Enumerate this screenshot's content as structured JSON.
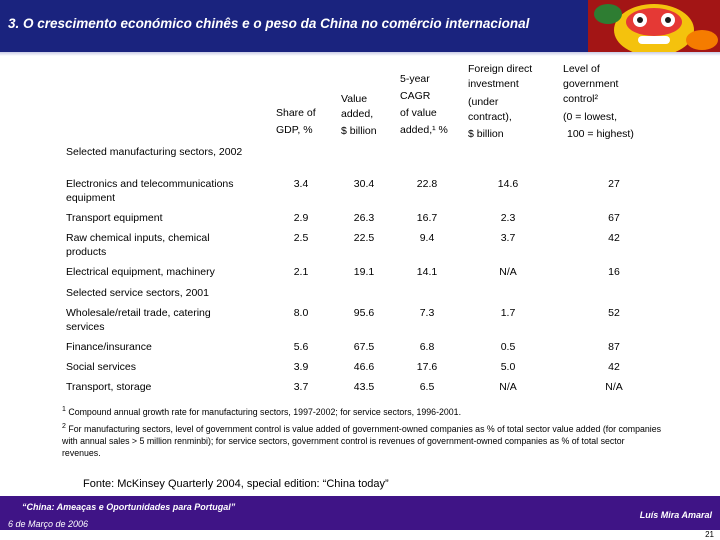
{
  "header": {
    "title": "3. O crescimento económico chinês e o peso da China no comércio internacional"
  },
  "columns": [
    {
      "lines": [
        "Share of",
        "GDP, %"
      ]
    },
    {
      "lines": [
        "Value",
        "added,",
        "$ billion"
      ]
    },
    {
      "lines": [
        "5-year",
        "CAGR",
        "of value",
        "added,¹ %"
      ]
    },
    {
      "lines": [
        "Foreign direct",
        "investment",
        "(under",
        "contract),",
        "$ billion"
      ]
    },
    {
      "lines": [
        "Level of",
        "government",
        "control²",
        "(0 = lowest,",
        "100 = highest)"
      ]
    }
  ],
  "sections": [
    {
      "label": "Selected manufacturing sectors, 2002",
      "rows": [
        {
          "label": "Electronics and telecommunications equipment",
          "values": [
            "3.4",
            "30.4",
            "22.8",
            "14.6",
            "27"
          ]
        },
        {
          "label": "Transport equipment",
          "values": [
            "2.9",
            "26.3",
            "16.7",
            "2.3",
            "67"
          ]
        },
        {
          "label": "Raw chemical inputs, chemical products",
          "values": [
            "2.5",
            "22.5",
            "9.4",
            "3.7",
            "42"
          ]
        },
        {
          "label": "Electrical equipment, machinery",
          "values": [
            "2.1",
            "19.1",
            "14.1",
            "N/A",
            "16"
          ]
        }
      ]
    },
    {
      "label": "Selected service sectors, 2001",
      "rows": [
        {
          "label": "Wholesale/retail trade, catering services",
          "values": [
            "8.0",
            "95.6",
            "7.3",
            "1.7",
            "52"
          ]
        },
        {
          "label": "Finance/insurance",
          "values": [
            "5.6",
            "67.5",
            "6.8",
            "0.5",
            "87"
          ]
        },
        {
          "label": "Social services",
          "values": [
            "3.9",
            "46.6",
            "17.6",
            "5.0",
            "42"
          ]
        },
        {
          "label": "Transport, storage",
          "values": [
            "3.7",
            "43.5",
            "6.5",
            "N/A",
            "N/A"
          ]
        }
      ]
    }
  ],
  "footnotes": {
    "n1_mark": "1",
    "n1_text": "Compound annual growth rate for manufacturing sectors, 1997-2002; for service sectors, 1996-2001.",
    "n2_mark": "2",
    "n2_text": "For manufacturing sectors, level of government control is value added of government-owned companies as % of total sector value added (for companies with annual sales > 5 million renminbi); for service sectors, government control is revenues of government-owned companies as % of total sector revenues."
  },
  "source": "Fonte: McKinsey Quarterly 2004, special edition: “China today”",
  "footer": {
    "left_title": "“China: Ameaças e Oportunidades para Portugal”",
    "left_date": "6 de Março de 2006",
    "right_author": "Luís Mira Amaral",
    "page": "21"
  }
}
